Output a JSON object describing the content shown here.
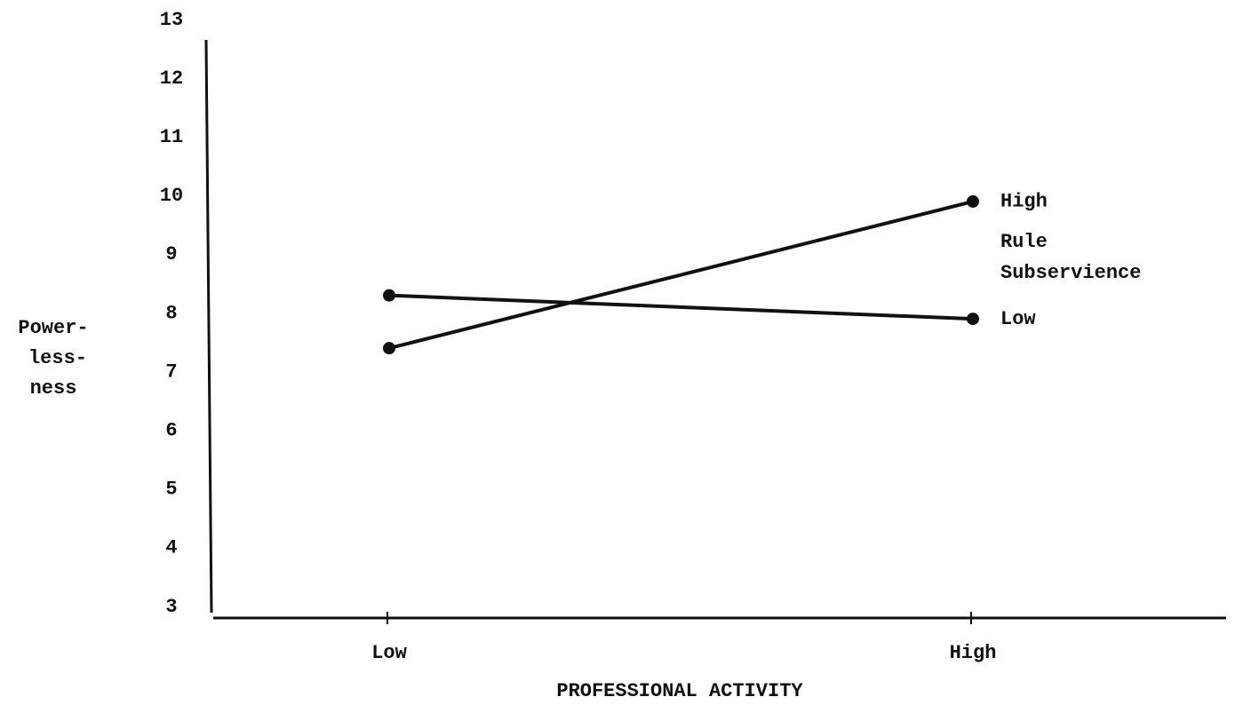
{
  "chart_data": {
    "type": "line",
    "y_label": [
      "Power-",
      "less-",
      "ness"
    ],
    "x_label": "PROFESSIONAL ACTIVITY",
    "annotation": [
      "Rule",
      "Subservience"
    ],
    "categories": [
      "Low",
      "High"
    ],
    "series": [
      {
        "name": "High",
        "color": "#111111",
        "values": [
          7.4,
          9.9
        ]
      },
      {
        "name": "Low",
        "color": "#111111",
        "values": [
          8.3,
          7.9
        ]
      }
    ],
    "ylim": [
      3,
      13
    ],
    "yticks": [
      3,
      4,
      5,
      6,
      7,
      8,
      9,
      10,
      11,
      12,
      13
    ]
  }
}
